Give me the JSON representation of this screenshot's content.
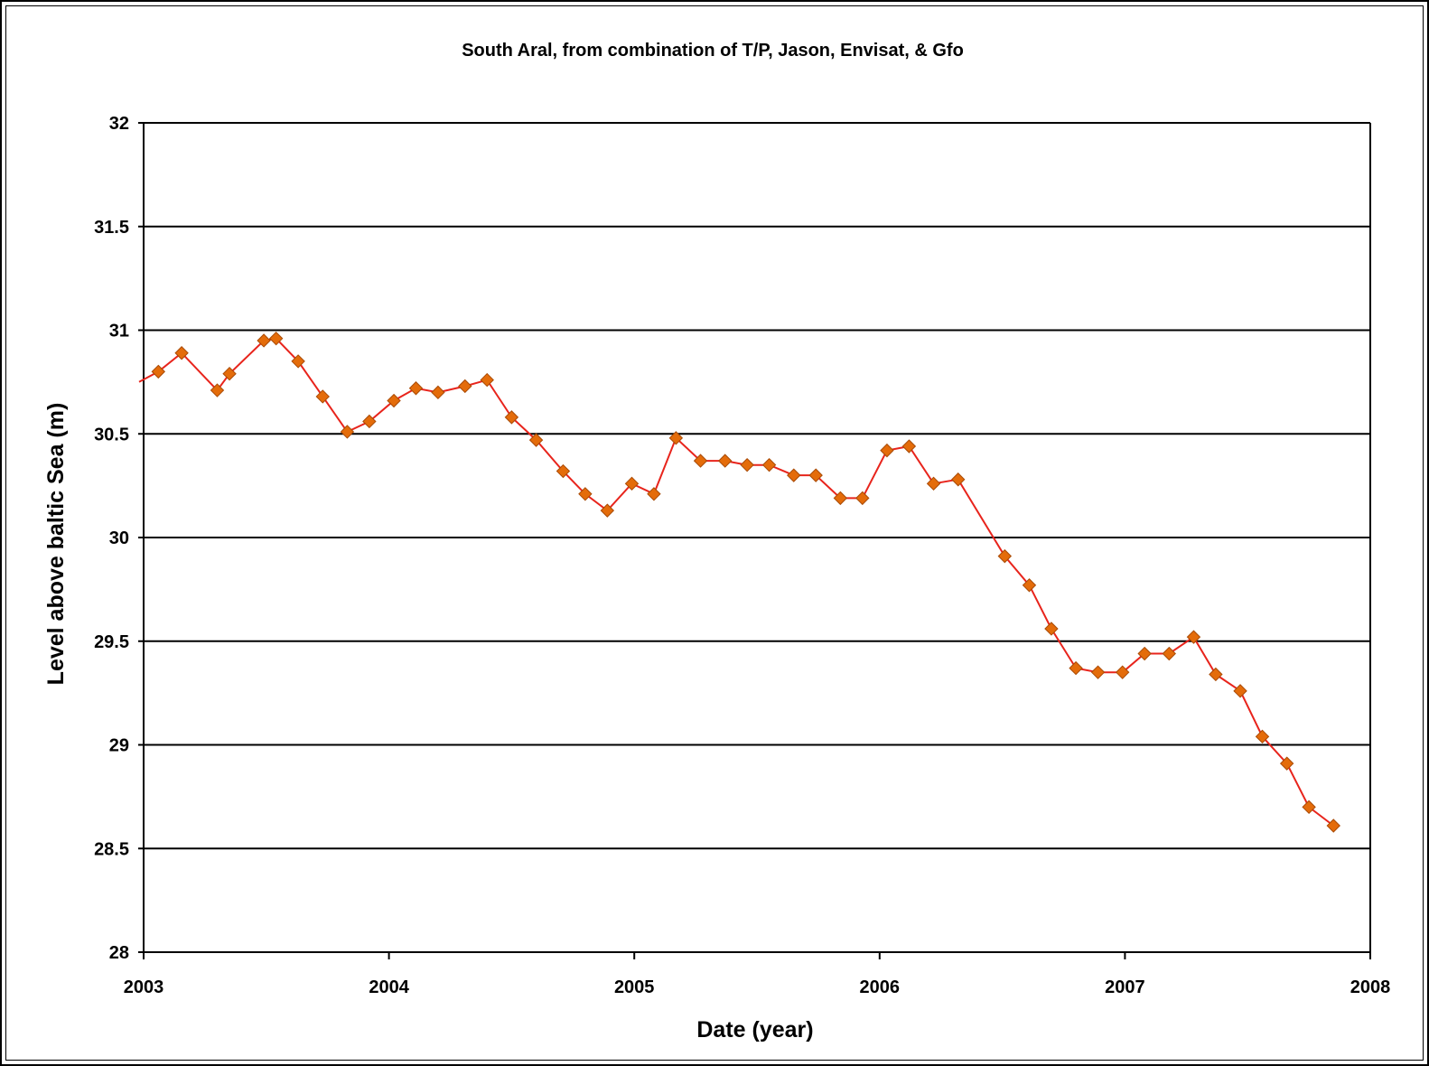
{
  "chart_data": {
    "type": "line",
    "title": "South Aral, from combination of T/P, Jason, Envisat, & Gfo",
    "xlabel": "Date (year)",
    "ylabel": "Level above baltic Sea (m)",
    "xlim": [
      2003,
      2008
    ],
    "ylim": [
      28,
      32
    ],
    "x_ticks": [
      "2003",
      "2004",
      "2005",
      "2006",
      "2007",
      "2008"
    ],
    "y_ticks": [
      "28",
      "28.5",
      "29",
      "29.5",
      "30",
      "30.5",
      "31",
      "31.5",
      "32"
    ],
    "grid": "horizontal",
    "colors": {
      "line": "#e8241c",
      "marker": "#e46c0a",
      "marker_edge": "#a84a06",
      "grid": "#000000"
    },
    "series": [
      {
        "x": [
          2003.06,
          2003.155,
          2003.3,
          2003.35,
          2003.49,
          2003.54,
          2003.63,
          2003.73,
          2003.83,
          2003.92,
          2004.02,
          2004.11,
          2004.2,
          2004.31,
          2004.4,
          2004.5,
          2004.6,
          2004.71,
          2004.8,
          2004.89,
          2004.99,
          2005.08,
          2005.17,
          2005.27,
          2005.37,
          2005.46,
          2005.55,
          2005.65,
          2005.74,
          2005.84,
          2005.93,
          2006.03,
          2006.12,
          2006.22,
          2006.32,
          2006.51,
          2006.61,
          2006.7,
          2006.8,
          2006.89,
          2006.99,
          2007.08,
          2007.18,
          2007.28,
          2007.37,
          2007.47,
          2007.56,
          2007.66,
          2007.75,
          2007.85
        ],
        "y": [
          30.8,
          30.89,
          30.71,
          30.79,
          30.95,
          30.96,
          30.85,
          30.68,
          30.51,
          30.56,
          30.66,
          30.72,
          30.7,
          30.73,
          30.76,
          30.58,
          30.47,
          30.32,
          30.21,
          30.13,
          30.26,
          30.21,
          30.48,
          30.37,
          30.37,
          30.35,
          30.35,
          30.3,
          30.3,
          30.19,
          30.19,
          30.42,
          30.44,
          30.26,
          30.28,
          29.91,
          29.77,
          29.56,
          29.37,
          29.35,
          29.35,
          29.44,
          29.44,
          29.52,
          29.34,
          29.26,
          29.04,
          28.91,
          28.7,
          28.61
        ]
      }
    ]
  }
}
